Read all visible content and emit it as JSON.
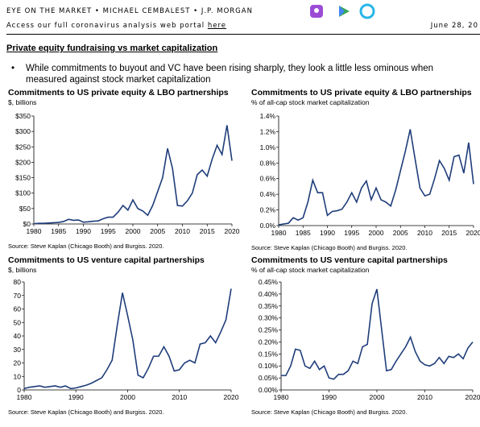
{
  "header": {
    "title": "EYE ON THE MARKET • MICHAEL CEMBALEST • J.P. MORGAN",
    "subtitle": "Access our full coronavirus analysis web portal",
    "link": "here",
    "date": "June 28, 20"
  },
  "section_title": "Private equity fundraising vs market capitalization",
  "bullet": "While commitments to buyout and VC have been rising sharply, they look a little less ominous when measured against stock market capitalization",
  "chart_data": [
    {
      "type": "line",
      "title": "Commitments to US private equity & LBO partnerships",
      "subtitle": "$, billions",
      "source": "Source: Steve Kaplan (Chicago Booth) and Burgiss. 2020.",
      "color": "#1f3d7a",
      "x": [
        1980,
        1981,
        1982,
        1983,
        1984,
        1985,
        1986,
        1987,
        1988,
        1989,
        1990,
        1991,
        1992,
        1993,
        1994,
        1995,
        1996,
        1997,
        1998,
        1999,
        2000,
        2001,
        2002,
        2003,
        2004,
        2005,
        2006,
        2007,
        2008,
        2009,
        2010,
        2011,
        2012,
        2013,
        2014,
        2015,
        2016,
        2017,
        2018,
        2019,
        2020
      ],
      "values": [
        1,
        2,
        2,
        3,
        4,
        5,
        8,
        15,
        12,
        13,
        6,
        7,
        9,
        10,
        17,
        22,
        22,
        38,
        60,
        45,
        78,
        50,
        42,
        28,
        60,
        105,
        150,
        245,
        180,
        60,
        58,
        75,
        100,
        160,
        175,
        155,
        210,
        255,
        225,
        320,
        205
      ],
      "xlim": [
        1980,
        2020
      ],
      "ylim": [
        0,
        350
      ],
      "xticks": [
        1980,
        1985,
        1990,
        1995,
        2000,
        2005,
        2010,
        2015,
        2020
      ],
      "yticks": [
        {
          "value": 0,
          "label": "$0"
        },
        {
          "value": 50,
          "label": "$50"
        },
        {
          "value": 100,
          "label": "$100"
        },
        {
          "value": 150,
          "label": "$150"
        },
        {
          "value": 200,
          "label": "$200"
        },
        {
          "value": 250,
          "label": "$250"
        },
        {
          "value": 300,
          "label": "$300"
        },
        {
          "value": 350,
          "label": "$350"
        }
      ]
    },
    {
      "type": "line",
      "title": "Commitments to US private equity & LBO partnerships",
      "subtitle": "% of all-cap stock market capitalization",
      "source": "Source: Steve Kaplan (Chicago Booth) and Burgiss. 2020.",
      "color": "#1f3d7a",
      "x": [
        1980,
        1981,
        1982,
        1983,
        1984,
        1985,
        1986,
        1987,
        1988,
        1989,
        1990,
        1991,
        1992,
        1993,
        1994,
        1995,
        1996,
        1997,
        1998,
        1999,
        2000,
        2001,
        2002,
        2003,
        2004,
        2005,
        2006,
        2007,
        2008,
        2009,
        2010,
        2011,
        2012,
        2013,
        2014,
        2015,
        2016,
        2017,
        2018,
        2019,
        2020
      ],
      "values": [
        0.01,
        0.02,
        0.03,
        0.1,
        0.07,
        0.1,
        0.3,
        0.58,
        0.42,
        0.42,
        0.13,
        0.18,
        0.19,
        0.21,
        0.3,
        0.42,
        0.3,
        0.48,
        0.57,
        0.33,
        0.48,
        0.33,
        0.3,
        0.25,
        0.45,
        0.7,
        0.95,
        1.23,
        0.85,
        0.48,
        0.38,
        0.4,
        0.6,
        0.83,
        0.73,
        0.58,
        0.88,
        0.9,
        0.67,
        1.06,
        0.53
      ],
      "xlim": [
        1980,
        2020
      ],
      "ylim": [
        0,
        1.4
      ],
      "xticks": [
        1980,
        1985,
        1990,
        1995,
        2000,
        2005,
        2010,
        2015,
        2020
      ],
      "yticks": [
        {
          "value": 0,
          "label": "0.0%"
        },
        {
          "value": 0.2,
          "label": "0.2%"
        },
        {
          "value": 0.4,
          "label": "0.4%"
        },
        {
          "value": 0.6,
          "label": "0.6%"
        },
        {
          "value": 0.8,
          "label": "0.8%"
        },
        {
          "value": 1.0,
          "label": "1.0%"
        },
        {
          "value": 1.2,
          "label": "1.2%"
        },
        {
          "value": 1.4,
          "label": "1.4%"
        }
      ]
    },
    {
      "type": "line",
      "title": "Commitments to US venture capital partnerships",
      "subtitle": "$, billions",
      "source": "Source: Steve Kaplan (Chicago Booth) and Burgiss. 2020.",
      "color": "#1f3d7a",
      "x": [
        1980,
        1981,
        1982,
        1983,
        1984,
        1985,
        1986,
        1987,
        1988,
        1989,
        1990,
        1991,
        1992,
        1993,
        1994,
        1995,
        1996,
        1997,
        1998,
        1999,
        2000,
        2001,
        2002,
        2003,
        2004,
        2005,
        2006,
        2007,
        2008,
        2009,
        2010,
        2011,
        2012,
        2013,
        2014,
        2015,
        2016,
        2017,
        2018,
        2019,
        2020
      ],
      "values": [
        1,
        2,
        2.5,
        3,
        2,
        2.5,
        3,
        2,
        3,
        1,
        1.5,
        2.5,
        3.5,
        5,
        7,
        9,
        15,
        22,
        48,
        72,
        55,
        37,
        11,
        9,
        16,
        25,
        25,
        32,
        25,
        14,
        15,
        20,
        22,
        20,
        34,
        35,
        40,
        35,
        43,
        52,
        75
      ],
      "xlim": [
        1980,
        2020
      ],
      "ylim": [
        0,
        80
      ],
      "xticks": [
        1980,
        1990,
        2000,
        2010,
        2020
      ],
      "yticks": [
        0,
        10,
        20,
        30,
        40,
        50,
        60,
        70,
        80
      ]
    },
    {
      "type": "line",
      "title": "Commitments to US venture capital partnerships",
      "subtitle": "% of all-cap stock market capitalization",
      "source": "Source: Steve Kaplan (Chicago Booth) and Burgiss. 2020.",
      "color": "#1f3d7a",
      "x": [
        1980,
        1981,
        1982,
        1983,
        1984,
        1985,
        1986,
        1987,
        1988,
        1989,
        1990,
        1991,
        1992,
        1993,
        1994,
        1995,
        1996,
        1997,
        1998,
        1999,
        2000,
        2001,
        2002,
        2003,
        2004,
        2005,
        2006,
        2007,
        2008,
        2009,
        2010,
        2011,
        2012,
        2013,
        2014,
        2015,
        2016,
        2017,
        2018,
        2019,
        2020
      ],
      "values": [
        0.06,
        0.06,
        0.1,
        0.17,
        0.165,
        0.1,
        0.09,
        0.12,
        0.085,
        0.1,
        0.05,
        0.045,
        0.065,
        0.065,
        0.08,
        0.12,
        0.11,
        0.18,
        0.19,
        0.36,
        0.42,
        0.25,
        0.08,
        0.085,
        0.12,
        0.15,
        0.18,
        0.22,
        0.16,
        0.12,
        0.105,
        0.1,
        0.11,
        0.135,
        0.11,
        0.14,
        0.135,
        0.15,
        0.13,
        0.175,
        0.2
      ],
      "xlim": [
        1980,
        2020
      ],
      "ylim": [
        0,
        0.45
      ],
      "xticks": [
        1980,
        1990,
        2000,
        2010,
        2020
      ],
      "yticks": [
        {
          "value": 0,
          "label": "0.00%"
        },
        {
          "value": 0.05,
          "label": "0.05%"
        },
        {
          "value": 0.1,
          "label": "0.10%"
        },
        {
          "value": 0.15,
          "label": "0.15%"
        },
        {
          "value": 0.2,
          "label": "0.20%"
        },
        {
          "value": 0.25,
          "label": "0.25%"
        },
        {
          "value": 0.3,
          "label": "0.30%"
        },
        {
          "value": 0.35,
          "label": "0.35%"
        },
        {
          "value": 0.4,
          "label": "0.40%"
        },
        {
          "value": 0.45,
          "label": "0.45%"
        }
      ]
    }
  ]
}
